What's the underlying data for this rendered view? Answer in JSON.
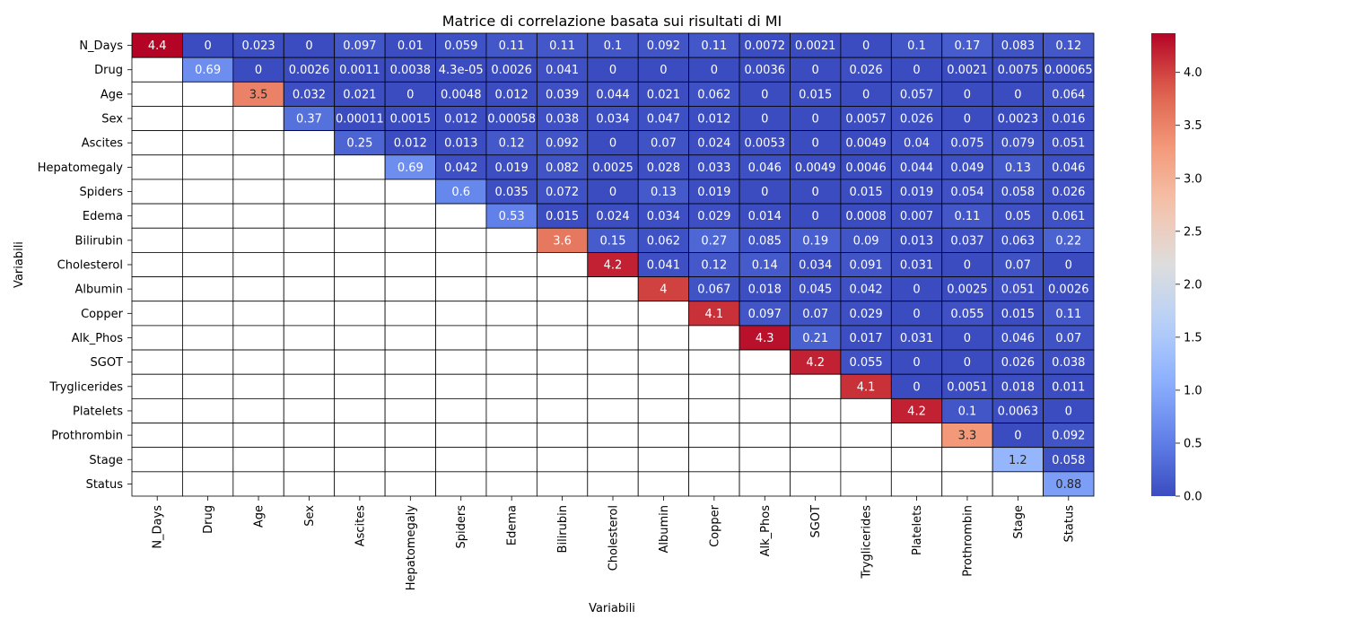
{
  "chart_data": {
    "type": "heatmap",
    "title": "Matrice di correlazione basata sui risultati di MI",
    "xlabel": "Variabili",
    "ylabel": "Variabili",
    "variables": [
      "N_Days",
      "Drug",
      "Age",
      "Sex",
      "Ascites",
      "Hepatomegaly",
      "Spiders",
      "Edema",
      "Bilirubin",
      "Cholesterol",
      "Albumin",
      "Copper",
      "Alk_Phos",
      "SGOT",
      "Tryglicerides",
      "Platelets",
      "Prothrombin",
      "Stage",
      "Status"
    ],
    "matrix": [
      [
        "4.4",
        "0",
        "0.023",
        "0",
        "0.097",
        "0.01",
        "0.059",
        "0.11",
        "0.11",
        "0.1",
        "0.092",
        "0.11",
        "0.0072",
        "0.0021",
        "0",
        "0.1",
        "0.17",
        "0.083",
        "0.12"
      ],
      [
        null,
        "0.69",
        "0",
        "0.0026",
        "0.0011",
        "0.0038",
        "4.3e-05",
        "0.0026",
        "0.041",
        "0",
        "0",
        "0",
        "0.0036",
        "0",
        "0.026",
        "0",
        "0.0021",
        "0.0075",
        "0.00065"
      ],
      [
        null,
        null,
        "3.5",
        "0.032",
        "0.021",
        "0",
        "0.0048",
        "0.012",
        "0.039",
        "0.044",
        "0.021",
        "0.062",
        "0",
        "0.015",
        "0",
        "0.057",
        "0",
        "0",
        "0.064"
      ],
      [
        null,
        null,
        null,
        "0.37",
        "0.00011",
        "0.0015",
        "0.012",
        "0.00058",
        "0.038",
        "0.034",
        "0.047",
        "0.012",
        "0",
        "0",
        "0.0057",
        "0.026",
        "0",
        "0.0023",
        "0.016"
      ],
      [
        null,
        null,
        null,
        null,
        "0.25",
        "0.012",
        "0.013",
        "0.12",
        "0.092",
        "0",
        "0.07",
        "0.024",
        "0.0053",
        "0",
        "0.0049",
        "0.04",
        "0.075",
        "0.079",
        "0.051"
      ],
      [
        null,
        null,
        null,
        null,
        null,
        "0.69",
        "0.042",
        "0.019",
        "0.082",
        "0.0025",
        "0.028",
        "0.033",
        "0.046",
        "0.0049",
        "0.0046",
        "0.044",
        "0.049",
        "0.13",
        "0.046"
      ],
      [
        null,
        null,
        null,
        null,
        null,
        null,
        "0.6",
        "0.035",
        "0.072",
        "0",
        "0.13",
        "0.019",
        "0",
        "0",
        "0.015",
        "0.019",
        "0.054",
        "0.058",
        "0.026"
      ],
      [
        null,
        null,
        null,
        null,
        null,
        null,
        null,
        "0.53",
        "0.015",
        "0.024",
        "0.034",
        "0.029",
        "0.014",
        "0",
        "0.0008",
        "0.007",
        "0.11",
        "0.05",
        "0.061"
      ],
      [
        null,
        null,
        null,
        null,
        null,
        null,
        null,
        null,
        "3.6",
        "0.15",
        "0.062",
        "0.27",
        "0.085",
        "0.19",
        "0.09",
        "0.013",
        "0.037",
        "0.063",
        "0.22"
      ],
      [
        null,
        null,
        null,
        null,
        null,
        null,
        null,
        null,
        null,
        "4.2",
        "0.041",
        "0.12",
        "0.14",
        "0.034",
        "0.091",
        "0.031",
        "0",
        "0.07",
        "0"
      ],
      [
        null,
        null,
        null,
        null,
        null,
        null,
        null,
        null,
        null,
        null,
        "4",
        "0.067",
        "0.018",
        "0.045",
        "0.042",
        "0",
        "0.0025",
        "0.051",
        "0.0026"
      ],
      [
        null,
        null,
        null,
        null,
        null,
        null,
        null,
        null,
        null,
        null,
        null,
        "4.1",
        "0.097",
        "0.07",
        "0.029",
        "0",
        "0.055",
        "0.015",
        "0.11"
      ],
      [
        null,
        null,
        null,
        null,
        null,
        null,
        null,
        null,
        null,
        null,
        null,
        null,
        "4.3",
        "0.21",
        "0.017",
        "0.031",
        "0",
        "0.046",
        "0.07"
      ],
      [
        null,
        null,
        null,
        null,
        null,
        null,
        null,
        null,
        null,
        null,
        null,
        null,
        null,
        "4.2",
        "0.055",
        "0",
        "0",
        "0.026",
        "0.038"
      ],
      [
        null,
        null,
        null,
        null,
        null,
        null,
        null,
        null,
        null,
        null,
        null,
        null,
        null,
        null,
        "4.1",
        "0",
        "0.0051",
        "0.018",
        "0.011"
      ],
      [
        null,
        null,
        null,
        null,
        null,
        null,
        null,
        null,
        null,
        null,
        null,
        null,
        null,
        null,
        null,
        "4.2",
        "0.1",
        "0.0063",
        "0"
      ],
      [
        null,
        null,
        null,
        null,
        null,
        null,
        null,
        null,
        null,
        null,
        null,
        null,
        null,
        null,
        null,
        null,
        "3.3",
        "0",
        "0.092"
      ],
      [
        null,
        null,
        null,
        null,
        null,
        null,
        null,
        null,
        null,
        null,
        null,
        null,
        null,
        null,
        null,
        null,
        null,
        "1.2",
        "0.058"
      ],
      [
        null,
        null,
        null,
        null,
        null,
        null,
        null,
        null,
        null,
        null,
        null,
        null,
        null,
        null,
        null,
        null,
        null,
        null,
        "0.88"
      ]
    ],
    "colorbar": {
      "colormap": "coolwarm",
      "range": [
        0,
        4.37
      ],
      "ticks": [
        "0.0",
        "0.5",
        "1.0",
        "1.5",
        "2.0",
        "2.5",
        "3.0",
        "3.5",
        "4.0"
      ]
    },
    "grid": true
  }
}
